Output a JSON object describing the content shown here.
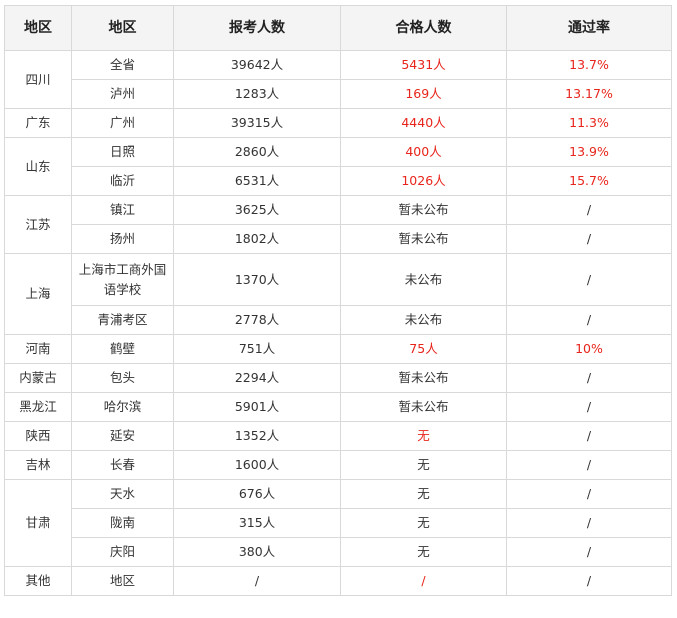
{
  "headers": [
    "地区",
    "地区",
    "报考人数",
    "合格人数",
    "通过率"
  ],
  "groups": [
    {
      "region": "四川",
      "rows": [
        {
          "city": "全省",
          "applicants": "39642人",
          "passed": "5431人",
          "rate": "13.7%",
          "red": true
        },
        {
          "city": "泸州",
          "applicants": "1283人",
          "passed": "169人",
          "rate": "13.17%",
          "red": true
        }
      ]
    },
    {
      "region": "广东",
      "rows": [
        {
          "city": "广州",
          "applicants": "39315人",
          "passed": "4440人",
          "rate": "11.3%",
          "red": true
        }
      ]
    },
    {
      "region": "山东",
      "rows": [
        {
          "city": "日照",
          "applicants": "2860人",
          "passed": "400人",
          "rate": "13.9%",
          "red": true
        },
        {
          "city": "临沂",
          "applicants": "6531人",
          "passed": "1026人",
          "rate": "15.7%",
          "red": true
        }
      ]
    },
    {
      "region": "江苏",
      "rows": [
        {
          "city": "镇江",
          "applicants": "3625人",
          "passed": "暂未公布",
          "rate": "/",
          "red": false
        },
        {
          "city": "扬州",
          "applicants": "1802人",
          "passed": "暂未公布",
          "rate": "/",
          "red": false
        }
      ]
    },
    {
      "region": "上海",
      "rows": [
        {
          "city": "上海市工商外国语学校",
          "applicants": "1370人",
          "passed": "未公布",
          "rate": "/",
          "red": false,
          "tall": true
        },
        {
          "city": "青浦考区",
          "applicants": "2778人",
          "passed": "未公布",
          "rate": "/",
          "red": false
        }
      ]
    },
    {
      "region": "河南",
      "rows": [
        {
          "city": "鹤壁",
          "applicants": "751人",
          "passed": "75人",
          "rate": "10%",
          "red": true
        }
      ]
    },
    {
      "region": "内蒙古",
      "rows": [
        {
          "city": "包头",
          "applicants": "2294人",
          "passed": "暂未公布",
          "rate": "/",
          "red": false
        }
      ]
    },
    {
      "region": "黑龙江",
      "rows": [
        {
          "city": "哈尔滨",
          "applicants": "5901人",
          "passed": "暂未公布",
          "rate": "/",
          "red": false
        }
      ]
    },
    {
      "region": "陕西",
      "rows": [
        {
          "city": "延安",
          "applicants": "1352人",
          "passed": "无",
          "rate": "/",
          "red": false,
          "passed_red": true
        }
      ]
    },
    {
      "region": "吉林",
      "rows": [
        {
          "city": "长春",
          "applicants": "1600人",
          "passed": "无",
          "rate": "/",
          "red": false
        }
      ]
    },
    {
      "region": "甘肃",
      "rows": [
        {
          "city": "天水",
          "applicants": "676人",
          "passed": "无",
          "rate": "/",
          "red": false
        },
        {
          "city": "陇南",
          "applicants": "315人",
          "passed": "无",
          "rate": "/",
          "red": false
        },
        {
          "city": "庆阳",
          "applicants": "380人",
          "passed": "无",
          "rate": "/",
          "red": false
        }
      ]
    },
    {
      "region": "其他",
      "rows": [
        {
          "city": "地区",
          "applicants": "/",
          "passed": "/",
          "rate": "/",
          "red": false,
          "passed_red": true
        }
      ]
    }
  ],
  "colors": {
    "highlight": "#e8251c",
    "text": "#333333",
    "border": "#d9d9d9",
    "header_bg": "#f4f4f4"
  }
}
